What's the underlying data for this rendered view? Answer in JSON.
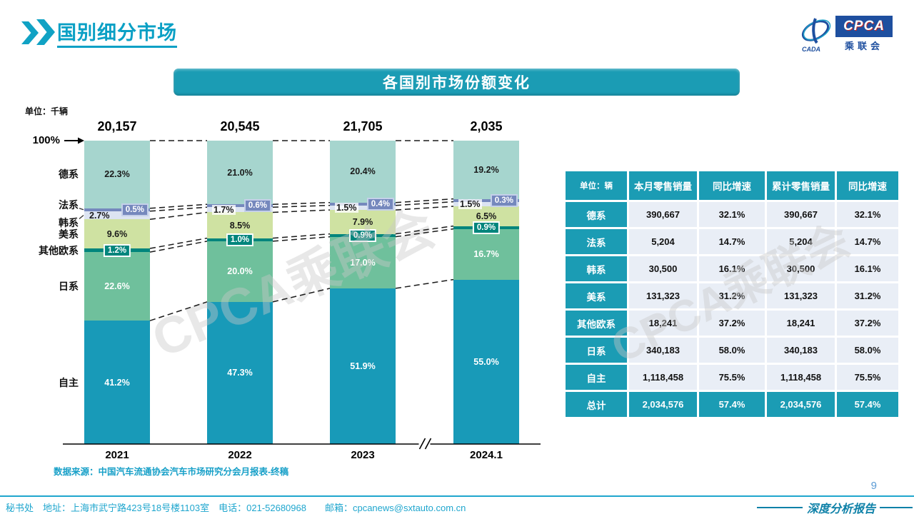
{
  "header": {
    "title": "国别细分市场"
  },
  "logo": {
    "cpca": "CPCA",
    "cn": "乘联会",
    "cada": "CADA"
  },
  "banner": {
    "title": "各国别市场份额变化"
  },
  "chart_data": {
    "type": "bar",
    "stacked": true,
    "unit_label": "单位：千辆",
    "top_axis_label": "100%",
    "categories": [
      "2021",
      "2022",
      "2023",
      "2024.1"
    ],
    "totals": [
      "20,157",
      "20,545",
      "21,705",
      "2,035"
    ],
    "ylim": [
      0,
      100
    ],
    "legend_position": "left",
    "series": [
      {
        "name": "德系",
        "color": "#A6D5CE",
        "text_color": "#1a1a1a",
        "label_style": "center",
        "values": [
          22.3,
          21.0,
          20.4,
          19.2
        ]
      },
      {
        "name": "法系",
        "color": "#7588BD",
        "text_color": "#ffffff",
        "label_style": "box-right",
        "box_border": "#C5D0EA",
        "label_offset": -7,
        "tick": true,
        "values": [
          0.5,
          0.6,
          0.4,
          0.3
        ]
      },
      {
        "name": "韩系",
        "color": "#DCE4F2",
        "text_color": "#1a1a1a",
        "label_style": "left",
        "label_offset": 10,
        "tick": true,
        "values": [
          2.7,
          1.7,
          1.5,
          1.5
        ]
      },
      {
        "name": "美系",
        "color": "#CFE2A2",
        "text_color": "#1a1a1a",
        "label_style": "center",
        "values": [
          9.6,
          8.5,
          7.9,
          6.5
        ]
      },
      {
        "name": "其他欧系",
        "color": "#00857C",
        "text_color": "#ffffff",
        "label_style": "box-center",
        "box_border": "#ffffff",
        "values": [
          1.2,
          1.0,
          0.9,
          0.9
        ]
      },
      {
        "name": "日系",
        "color": "#6FC09C",
        "text_color": "#ffffff",
        "label_style": "center",
        "values": [
          22.6,
          20.0,
          17.0,
          16.7
        ]
      },
      {
        "name": "自主",
        "color": "#189AB8",
        "text_color": "#ffffff",
        "label_style": "center",
        "values": [
          41.2,
          47.3,
          51.9,
          55.0
        ]
      }
    ],
    "source": "数据来源：中国汽车流通协会汽车市场研究分会月报表-终稿"
  },
  "table": {
    "unit_header": "单位：辆",
    "columns": [
      "本月零售销量",
      "同比增速",
      "累计零售销量",
      "同比增速"
    ],
    "rows": [
      {
        "name": "德系",
        "cells": [
          "390,667",
          "32.1%",
          "390,667",
          "32.1%"
        ]
      },
      {
        "name": "法系",
        "cells": [
          "5,204",
          "14.7%",
          "5,204",
          "14.7%"
        ]
      },
      {
        "name": "韩系",
        "cells": [
          "30,500",
          "16.1%",
          "30,500",
          "16.1%"
        ]
      },
      {
        "name": "美系",
        "cells": [
          "131,323",
          "31.2%",
          "131,323",
          "31.2%"
        ]
      },
      {
        "name": "其他欧系",
        "cells": [
          "18,241",
          "37.2%",
          "18,241",
          "37.2%"
        ]
      },
      {
        "name": "日系",
        "cells": [
          "340,183",
          "58.0%",
          "340,183",
          "58.0%"
        ]
      },
      {
        "name": "自主",
        "cells": [
          "1,118,458",
          "75.5%",
          "1,118,458",
          "75.5%"
        ]
      },
      {
        "name": "总计",
        "cells": [
          "2,034,576",
          "57.4%",
          "2,034,576",
          "57.4%"
        ],
        "is_total": true
      }
    ]
  },
  "watermark": "CPCA乘联会",
  "footer": {
    "contact": "秘书处　地址：上海市武宁路423号18号楼1103室　电话：021-52680968　　邮箱：cpcanews@sxtauto.com.cn",
    "report_label": "深度分析报告",
    "page_number": "9"
  },
  "colors": {
    "brand": "#1B9CB4",
    "title": "#0AA0C5",
    "footer": "#1FA6CE"
  }
}
